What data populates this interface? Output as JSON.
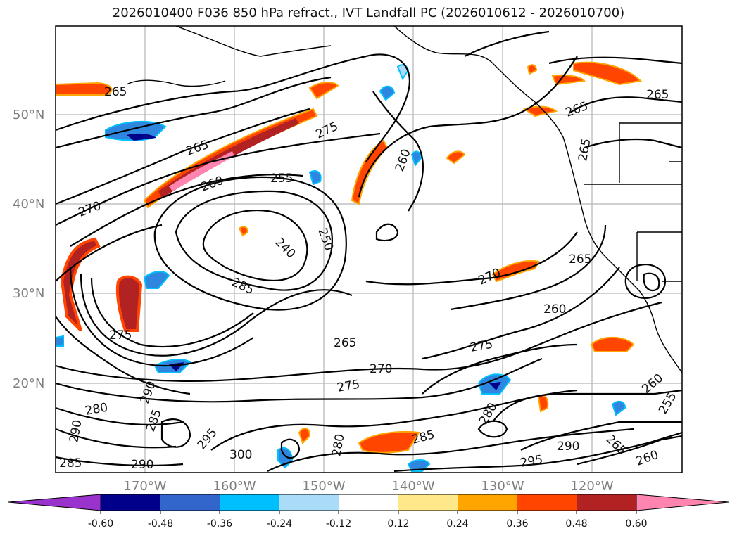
{
  "title": "2026010400 F036 850 hPa refract., IVT Landfall PC (2026010612 - 2026010700)",
  "lat_labels": [
    "50°N",
    "40°N",
    "30°N",
    "20°N"
  ],
  "lon_labels": [
    "170°W",
    "160°W",
    "150°W",
    "140°W",
    "130°W",
    "120°W"
  ],
  "contour_levels": [
    "240",
    "250",
    "255",
    "260",
    "265",
    "270",
    "275",
    "280",
    "285",
    "290",
    "295",
    "300"
  ],
  "contour_labels": [
    {
      "text": "265"
    },
    {
      "text": "275"
    },
    {
      "text": "255"
    },
    {
      "text": "260"
    },
    {
      "text": "270"
    },
    {
      "text": "240"
    },
    {
      "text": "250"
    },
    {
      "text": "285"
    },
    {
      "text": "265"
    },
    {
      "text": "275"
    },
    {
      "text": "270"
    },
    {
      "text": "275"
    },
    {
      "text": "265"
    },
    {
      "text": "280"
    },
    {
      "text": "285"
    },
    {
      "text": "290"
    },
    {
      "text": "295"
    },
    {
      "text": "300"
    },
    {
      "text": "280"
    },
    {
      "text": "285"
    },
    {
      "text": "290"
    },
    {
      "text": "295"
    },
    {
      "text": "260"
    },
    {
      "text": "265"
    },
    {
      "text": "270"
    },
    {
      "text": "265"
    },
    {
      "text": "260"
    },
    {
      "text": "265"
    },
    {
      "text": "265"
    },
    {
      "text": "260"
    },
    {
      "text": "290"
    },
    {
      "text": "285"
    },
    {
      "text": "275"
    },
    {
      "text": "265"
    },
    {
      "text": "260"
    },
    {
      "text": "255"
    },
    {
      "text": "280"
    },
    {
      "text": "290"
    }
  ],
  "colorbar": {
    "ticks": [
      "-0.60",
      "-0.48",
      "-0.36",
      "-0.24",
      "-0.12",
      "0.12",
      "0.24",
      "0.36",
      "0.48",
      "0.60"
    ],
    "colors": [
      "#9933cc",
      "#00008b",
      "#3366cc",
      "#00bfff",
      "#aadcf8",
      "#ffffff",
      "#ffe88a",
      "#ffa500",
      "#ff4500",
      "#b22222",
      "#ff85b0"
    ]
  },
  "shading_colors": {
    "neg_light": "#aadcf8",
    "neg_mid": "#2e86de",
    "neg_dark": "#00008b",
    "pos_light": "#ffa500",
    "pos_mid": "#ff4500",
    "pos_dark": "#b22222",
    "pos_max": "#ff85b0"
  }
}
